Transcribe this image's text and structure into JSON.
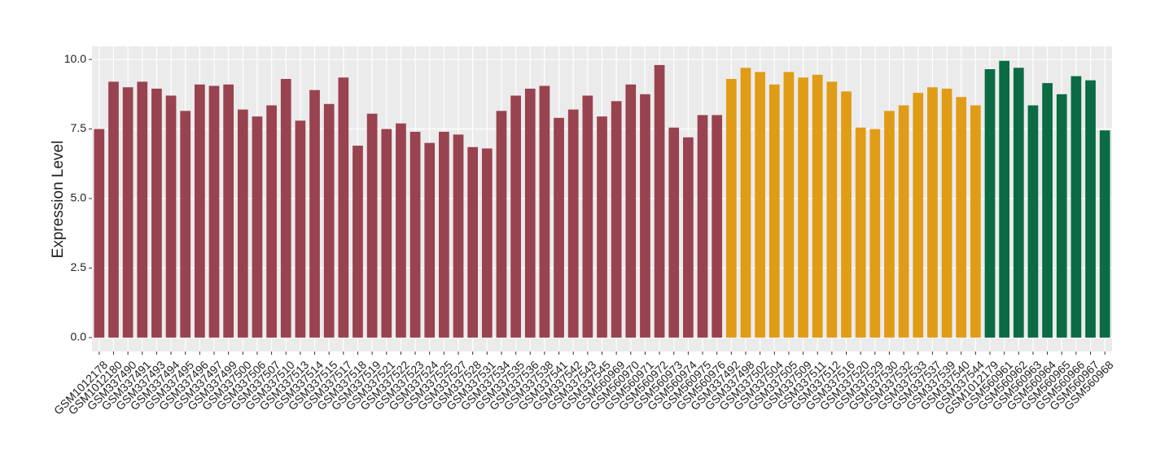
{
  "chart_data": {
    "type": "bar",
    "y_label": "Expression Level",
    "categories": [
      "GSM1012178",
      "GSM1012180",
      "GSM337490",
      "GSM337491",
      "GSM337493",
      "GSM337494",
      "GSM337495",
      "GSM337496",
      "GSM337497",
      "GSM337499",
      "GSM337500",
      "GSM337506",
      "GSM337507",
      "GSM337510",
      "GSM337513",
      "GSM337514",
      "GSM337515",
      "GSM337517",
      "GSM337518",
      "GSM337519",
      "GSM337521",
      "GSM337522",
      "GSM337523",
      "GSM337524",
      "GSM337525",
      "GSM337527",
      "GSM337528",
      "GSM337531",
      "GSM337534",
      "GSM337535",
      "GSM337536",
      "GSM337538",
      "GSM337541",
      "GSM337542",
      "GSM337543",
      "GSM337545",
      "GSM560969",
      "GSM560970",
      "GSM560971",
      "GSM560972",
      "GSM560973",
      "GSM560974",
      "GSM560975",
      "GSM560976",
      "GSM337492",
      "GSM337498",
      "GSM337502",
      "GSM337504",
      "GSM337505",
      "GSM337509",
      "GSM337511",
      "GSM337512",
      "GSM337516",
      "GSM337520",
      "GSM337529",
      "GSM337530",
      "GSM337532",
      "GSM337533",
      "GSM337537",
      "GSM337539",
      "GSM337540",
      "GSM337544",
      "GSM1012179",
      "GSM560961",
      "GSM560962",
      "GSM560963",
      "GSM560964",
      "GSM560965",
      "GSM560966",
      "GSM560967",
      "GSM560968"
    ],
    "values": [
      7.5,
      9.2,
      9.0,
      9.2,
      8.95,
      8.7,
      8.15,
      9.1,
      9.05,
      9.1,
      8.2,
      7.95,
      8.35,
      9.3,
      7.8,
      8.9,
      8.4,
      9.35,
      6.9,
      8.05,
      7.5,
      7.7,
      7.4,
      7.0,
      7.4,
      7.3,
      6.85,
      6.8,
      8.15,
      8.7,
      8.95,
      9.05,
      7.9,
      8.2,
      8.7,
      7.95,
      8.5,
      9.1,
      8.75,
      9.8,
      7.55,
      7.2,
      8.0,
      8.0,
      9.3,
      9.7,
      9.55,
      9.1,
      9.55,
      9.35,
      9.45,
      9.2,
      8.85,
      7.55,
      7.5,
      8.15,
      8.35,
      8.8,
      9.0,
      8.95,
      8.65,
      8.35,
      9.65,
      9.95,
      9.7,
      8.35,
      9.15,
      8.75,
      9.4,
      9.25,
      7.45
    ],
    "colors": [
      "#98434f",
      "#98434f",
      "#98434f",
      "#98434f",
      "#98434f",
      "#98434f",
      "#98434f",
      "#98434f",
      "#98434f",
      "#98434f",
      "#98434f",
      "#98434f",
      "#98434f",
      "#98434f",
      "#98434f",
      "#98434f",
      "#98434f",
      "#98434f",
      "#98434f",
      "#98434f",
      "#98434f",
      "#98434f",
      "#98434f",
      "#98434f",
      "#98434f",
      "#98434f",
      "#98434f",
      "#98434f",
      "#98434f",
      "#98434f",
      "#98434f",
      "#98434f",
      "#98434f",
      "#98434f",
      "#98434f",
      "#98434f",
      "#98434f",
      "#98434f",
      "#98434f",
      "#98434f",
      "#98434f",
      "#98434f",
      "#98434f",
      "#98434f",
      "#e09c17",
      "#e09c17",
      "#e09c17",
      "#e09c17",
      "#e09c17",
      "#e09c17",
      "#e09c17",
      "#e09c17",
      "#e09c17",
      "#e09c17",
      "#e09c17",
      "#e09c17",
      "#e09c17",
      "#e09c17",
      "#e09c17",
      "#e09c17",
      "#e09c17",
      "#e09c17",
      "#0a6b44",
      "#0a6b44",
      "#0a6b44",
      "#0a6b44",
      "#0a6b44",
      "#0a6b44",
      "#0a6b44",
      "#0a6b44",
      "#0a6b44"
    ],
    "ylim": [
      -0.5,
      10.47
    ],
    "yticks": [
      {
        "value": 0,
        "label": "0.0"
      },
      {
        "value": 2.5,
        "label": "2.5"
      },
      {
        "value": 5,
        "label": "5.0"
      },
      {
        "value": 7.5,
        "label": "7.5"
      },
      {
        "value": 10,
        "label": "10.0"
      }
    ],
    "grid": true
  }
}
